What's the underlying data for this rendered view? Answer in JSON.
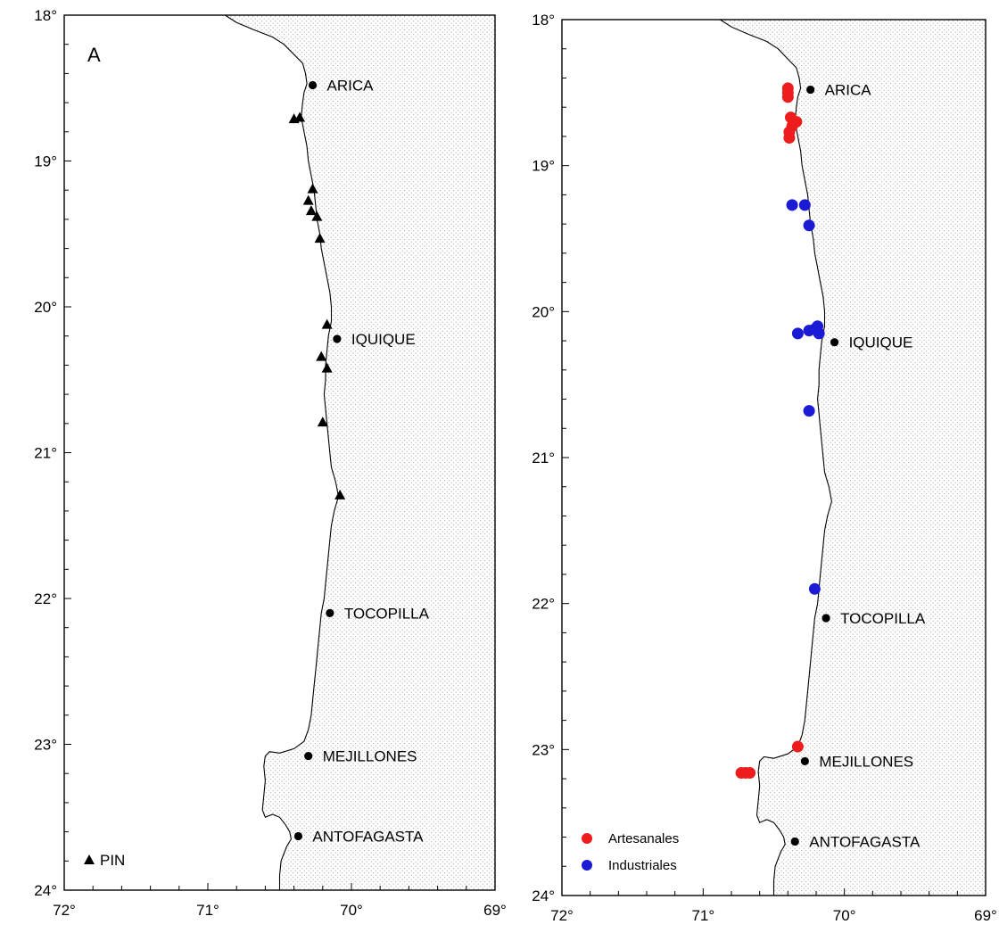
{
  "panels": [
    {
      "tag": "A",
      "lat_ticks": [
        "18°",
        "19°",
        "20°",
        "21°",
        "22°",
        "23°",
        "24°"
      ],
      "lon_ticks": [
        "72°",
        "71°",
        "70°",
        "69°"
      ],
      "cities": [
        {
          "name": "ARICA",
          "lat": 18.48,
          "lon": 70.27
        },
        {
          "name": "IQUIQUE",
          "lat": 20.22,
          "lon": 70.1
        },
        {
          "name": "TOCOPILLA",
          "lat": 22.1,
          "lon": 70.15
        },
        {
          "name": "MEJILLONES",
          "lat": 23.08,
          "lon": 70.3
        },
        {
          "name": "ANTOFAGASTA",
          "lat": 23.63,
          "lon": 70.37
        }
      ],
      "legend": [
        {
          "label": "PIN",
          "symbol": "triangle",
          "color": "#000000"
        }
      ],
      "points": [
        {
          "series": "PIN",
          "lat": 18.71,
          "lon": 70.4
        },
        {
          "series": "PIN",
          "lat": 18.7,
          "lon": 70.36
        },
        {
          "series": "PIN",
          "lat": 19.19,
          "lon": 70.27
        },
        {
          "series": "PIN",
          "lat": 19.27,
          "lon": 70.3
        },
        {
          "series": "PIN",
          "lat": 19.34,
          "lon": 70.28
        },
        {
          "series": "PIN",
          "lat": 19.38,
          "lon": 70.24
        },
        {
          "series": "PIN",
          "lat": 19.53,
          "lon": 70.22
        },
        {
          "series": "PIN",
          "lat": 20.12,
          "lon": 70.17
        },
        {
          "series": "PIN",
          "lat": 20.34,
          "lon": 70.21
        },
        {
          "series": "PIN",
          "lat": 20.42,
          "lon": 70.17
        },
        {
          "series": "PIN",
          "lat": 20.79,
          "lon": 70.2
        },
        {
          "series": "PIN",
          "lat": 21.29,
          "lon": 70.08
        }
      ]
    },
    {
      "tag": "",
      "lat_ticks": [
        "18°",
        "19°",
        "20°",
        "21°",
        "22°",
        "23°",
        "24°"
      ],
      "lon_ticks": [
        "72°",
        "71°",
        "70°",
        "69°"
      ],
      "cities": [
        {
          "name": "ARICA",
          "lat": 18.48,
          "lon": 70.24
        },
        {
          "name": "IQUIQUE",
          "lat": 20.21,
          "lon": 70.07
        },
        {
          "name": "TOCOPILLA",
          "lat": 22.1,
          "lon": 70.13
        },
        {
          "name": "MEJILLONES",
          "lat": 23.08,
          "lon": 70.28
        },
        {
          "name": "ANTOFAGASTA",
          "lat": 23.63,
          "lon": 70.35
        }
      ],
      "legend": [
        {
          "label": "Artesanales",
          "symbol": "circle",
          "color": "#ee1c1c"
        },
        {
          "label": "Industriales",
          "symbol": "circle",
          "color": "#1b1bd6"
        }
      ],
      "points": [
        {
          "series": "Artesanales",
          "lat": 18.47,
          "lon": 70.4
        },
        {
          "series": "Artesanales",
          "lat": 18.5,
          "lon": 70.4
        },
        {
          "series": "Artesanales",
          "lat": 18.53,
          "lon": 70.4
        },
        {
          "series": "Artesanales",
          "lat": 18.67,
          "lon": 70.38
        },
        {
          "series": "Artesanales",
          "lat": 18.7,
          "lon": 70.34
        },
        {
          "series": "Artesanales",
          "lat": 18.73,
          "lon": 70.37
        },
        {
          "series": "Artesanales",
          "lat": 18.77,
          "lon": 70.39
        },
        {
          "series": "Artesanales",
          "lat": 18.81,
          "lon": 70.39
        },
        {
          "series": "Artesanales",
          "lat": 22.98,
          "lon": 70.33
        },
        {
          "series": "Artesanales",
          "lat": 23.16,
          "lon": 70.73
        },
        {
          "series": "Artesanales",
          "lat": 23.16,
          "lon": 70.7
        },
        {
          "series": "Artesanales",
          "lat": 23.16,
          "lon": 70.67
        },
        {
          "series": "Industriales",
          "lat": 19.27,
          "lon": 70.37
        },
        {
          "series": "Industriales",
          "lat": 19.27,
          "lon": 70.28
        },
        {
          "series": "Industriales",
          "lat": 19.41,
          "lon": 70.25
        },
        {
          "series": "Industriales",
          "lat": 20.1,
          "lon": 70.19
        },
        {
          "series": "Industriales",
          "lat": 20.12,
          "lon": 70.21
        },
        {
          "series": "Industriales",
          "lat": 20.13,
          "lon": 70.25
        },
        {
          "series": "Industriales",
          "lat": 20.15,
          "lon": 70.33
        },
        {
          "series": "Industriales",
          "lat": 20.15,
          "lon": 70.18
        },
        {
          "series": "Industriales",
          "lat": 20.68,
          "lon": 70.25
        },
        {
          "series": "Industriales",
          "lat": 21.9,
          "lon": 70.21
        }
      ]
    }
  ]
}
